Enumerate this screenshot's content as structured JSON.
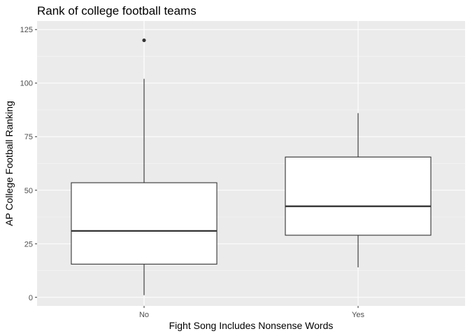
{
  "chart_data": {
    "type": "boxplot",
    "title": "Rank of college football teams",
    "xlabel": "Fight Song Includes Nonsense Words",
    "ylabel": "AP College Football Ranking",
    "categories": [
      "No",
      "Yes"
    ],
    "ylim": [
      -4,
      129
    ],
    "yticks": [
      0,
      25,
      50,
      75,
      100,
      125
    ],
    "grid": true,
    "boxes": [
      {
        "category": "No",
        "whisker_low": 1,
        "q1": 15.5,
        "median": 31,
        "q3": 53.5,
        "whisker_high": 102,
        "outliers": [
          120
        ]
      },
      {
        "category": "Yes",
        "whisker_low": 14,
        "q1": 29,
        "median": 42.5,
        "q3": 65.5,
        "whisker_high": 86,
        "outliers": []
      }
    ],
    "colors": {
      "panel": "#ebebeb",
      "grid_major": "#ffffff",
      "box_fill": "#ffffff",
      "box_line": "#333333",
      "tick_mark": "#333333"
    }
  }
}
